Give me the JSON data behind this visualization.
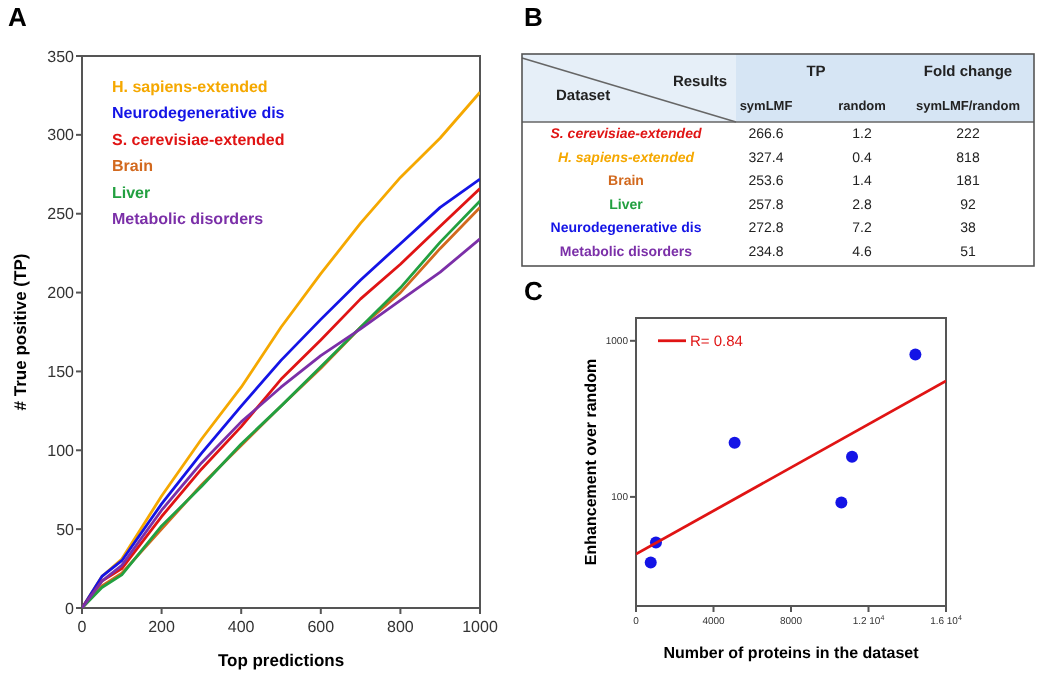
{
  "chart_data": [
    {
      "type": "line",
      "title": "A",
      "xlabel": "Top predictions",
      "ylabel": "# True positive (TP)",
      "xlim": [
        0,
        1000
      ],
      "ylim": [
        0,
        350
      ],
      "xticks": [
        0,
        200,
        400,
        600,
        800,
        1000
      ],
      "yticks": [
        0,
        50,
        100,
        150,
        200,
        250,
        300,
        350
      ],
      "legend": "top left",
      "grid": false,
      "x": [
        0,
        50,
        100,
        200,
        300,
        400,
        500,
        600,
        700,
        800,
        900,
        1000
      ],
      "series": [
        {
          "name": "H. sapiens-extended",
          "color": "#f5a800",
          "values": [
            0,
            20,
            31,
            71,
            107,
            140,
            178,
            212,
            244,
            273,
            298,
            327
          ]
        },
        {
          "name": "Neurodegenerative dis",
          "color": "#1414e6",
          "values": [
            0,
            20,
            30,
            66,
            98,
            128,
            157,
            183,
            208,
            231,
            254,
            272
          ]
        },
        {
          "name": "S. cerevisiae-extended",
          "color": "#e01414",
          "values": [
            0,
            17,
            25,
            58,
            88,
            115,
            145,
            170,
            196,
            218,
            242,
            266
          ]
        },
        {
          "name": "Brain",
          "color": "#d2691e",
          "values": [
            0,
            14,
            22,
            50,
            78,
            103,
            128,
            152,
            178,
            200,
            228,
            254
          ]
        },
        {
          "name": "Liver",
          "color": "#22a040",
          "values": [
            0,
            13,
            21,
            52,
            77,
            104,
            128,
            153,
            178,
            203,
            232,
            258
          ]
        },
        {
          "name": "Metabolic disorders",
          "color": "#7b2fa8",
          "values": [
            0,
            17,
            27,
            62,
            92,
            118,
            140,
            160,
            177,
            195,
            213,
            234
          ]
        }
      ]
    },
    {
      "type": "other",
      "title": "B",
      "annotations": [
        "Results",
        "Dataset",
        "TP",
        "Fold change"
      ],
      "data_labels": true,
      "categories": [
        "S. cerevisiae-extended",
        "H. sapiens-extended",
        "Brain",
        "Liver",
        "Neurodegenerative dis",
        "Metabolic disorders"
      ],
      "colors": [
        "#e01414",
        "#f5a800",
        "#d2691e",
        "#22a040",
        "#1414e6",
        "#7b2fa8"
      ],
      "series": [
        {
          "name": "symLMF",
          "values": [
            266.6,
            327.4,
            253.6,
            257.8,
            272.8,
            234.8
          ]
        },
        {
          "name": "random",
          "values": [
            1.2,
            0.4,
            1.4,
            2.8,
            7.2,
            4.6
          ]
        },
        {
          "name": "symLMF/random",
          "values": [
            222,
            818,
            181,
            92,
            38,
            51
          ]
        }
      ]
    },
    {
      "type": "scatter",
      "title": "C",
      "xlabel": "Number of proteins in the dataset",
      "ylabel": "Enhancement over random",
      "log": "y",
      "xlim": [
        0,
        16000
      ],
      "ylim": [
        20,
        1400
      ],
      "xticks": [
        0,
        4000,
        8000,
        {
          "value": 12000,
          "label": "1.2 10$^{4}$"
        },
        {
          "value": 16000,
          "label": "1.6 10$^{4}$"
        }
      ],
      "yticks": [
        100,
        1000
      ],
      "legend": "top left",
      "grid": false,
      "series": [
        {
          "type": "scatter",
          "color": "#1414e6",
          "marker": "circle",
          "x": [
            760,
            1030,
            5090,
            10600,
            11150,
            14420
          ],
          "values": [
            38,
            51,
            222,
            92,
            181,
            818
          ]
        },
        {
          "type": "line",
          "name": "R= 0.84",
          "color": "#e01414",
          "x": [
            0,
            16000
          ],
          "values": [
            43,
            553
          ]
        }
      ]
    }
  ]
}
